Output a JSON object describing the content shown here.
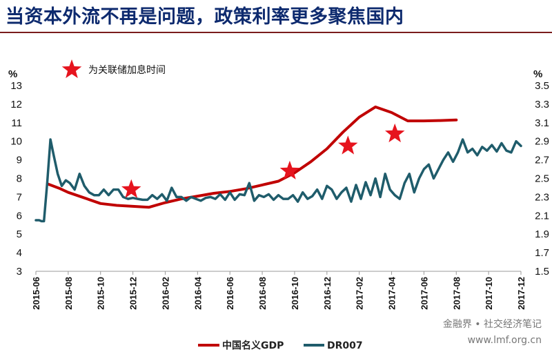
{
  "header": {
    "title": "当资本外流不再是问题，政策利率更多聚焦国内"
  },
  "watermark": {
    "text": "金融界 • 社交经济笔记",
    "site": "www.lmf.org.cn"
  },
  "chart_data": {
    "type": "line",
    "title": "当资本外流不再是问题，政策利率更多聚焦国内",
    "left_axis": {
      "unit": "%",
      "range": [
        3,
        13
      ],
      "ticks": [
        "3",
        "4",
        "5",
        "6",
        "7",
        "8",
        "9",
        "10",
        "11",
        "12",
        "13"
      ]
    },
    "right_axis": {
      "unit": "%",
      "range": [
        1.5,
        3.5
      ],
      "ticks": [
        "1.5",
        "1.7",
        "1.9",
        "2.1",
        "2.3",
        "2.5",
        "2.7",
        "2.9",
        "3.1",
        "3.3",
        "3.5"
      ]
    },
    "x_range": [
      0,
      30
    ],
    "categories": [
      "2015-06",
      "2015-08",
      "2015-10",
      "2015-12",
      "2016-02",
      "2016-04",
      "2016-06",
      "2016-08",
      "2016-10",
      "2016-12",
      "2017-02",
      "2017-04",
      "2017-06",
      "2017-08",
      "2017-10",
      "2017-12"
    ],
    "series": [
      {
        "name": "中国名义GDP",
        "axis": "left",
        "color": "#c00000",
        "x": [
          0.75,
          1.5,
          2,
          3,
          4,
          5,
          6,
          7,
          8,
          9,
          10,
          11,
          12,
          13,
          14,
          15,
          16,
          17,
          18,
          19,
          20,
          21,
          22,
          23,
          24,
          25,
          26
        ],
        "y": [
          7.7,
          7.45,
          7.25,
          6.95,
          6.65,
          6.55,
          6.5,
          6.45,
          6.7,
          6.9,
          7.05,
          7.2,
          7.3,
          7.45,
          7.65,
          7.85,
          8.3,
          8.9,
          9.6,
          10.5,
          11.3,
          11.85,
          11.55,
          11.1,
          11.1,
          11.12,
          11.15
        ]
      },
      {
        "name": "DR007",
        "axis": "right",
        "color": "#1f5c6b",
        "x": [
          0,
          0.2,
          0.35,
          0.5,
          0.7,
          0.9,
          1.1,
          1.35,
          1.6,
          1.85,
          2.1,
          2.4,
          2.7,
          3,
          3.3,
          3.6,
          3.9,
          4.2,
          4.5,
          4.8,
          5.1,
          5.4,
          5.7,
          6,
          6.3,
          6.6,
          6.9,
          7.2,
          7.5,
          7.8,
          8.1,
          8.4,
          8.7,
          9,
          9.3,
          9.6,
          9.9,
          10.2,
          10.5,
          10.8,
          11.1,
          11.4,
          11.7,
          12,
          12.3,
          12.6,
          12.9,
          13.2,
          13.5,
          13.8,
          14.1,
          14.4,
          14.7,
          15,
          15.3,
          15.6,
          15.9,
          16.2,
          16.5,
          16.8,
          17.1,
          17.4,
          17.7,
          18,
          18.3,
          18.6,
          18.9,
          19.2,
          19.5,
          19.8,
          20.1,
          20.4,
          20.7,
          21,
          21.3,
          21.6,
          21.9,
          22.2,
          22.5,
          22.8,
          23.1,
          23.4,
          23.7,
          24,
          24.3,
          24.6,
          24.9,
          25.2,
          25.5,
          25.8,
          26.1,
          26.4,
          26.7,
          27,
          27.3,
          27.6,
          27.9,
          28.2,
          28.5,
          28.8,
          29.1,
          29.4,
          29.7,
          30
        ],
        "y": [
          2.05,
          2.05,
          2.04,
          2.04,
          2.45,
          2.92,
          2.75,
          2.55,
          2.42,
          2.48,
          2.45,
          2.38,
          2.55,
          2.42,
          2.35,
          2.32,
          2.32,
          2.38,
          2.32,
          2.38,
          2.38,
          2.3,
          2.28,
          2.29,
          2.28,
          2.27,
          2.27,
          2.32,
          2.28,
          2.33,
          2.26,
          2.4,
          2.3,
          2.3,
          2.26,
          2.3,
          2.28,
          2.26,
          2.29,
          2.3,
          2.28,
          2.33,
          2.27,
          2.35,
          2.27,
          2.33,
          2.32,
          2.45,
          2.26,
          2.32,
          2.3,
          2.33,
          2.27,
          2.32,
          2.28,
          2.28,
          2.32,
          2.25,
          2.35,
          2.28,
          2.31,
          2.38,
          2.28,
          2.42,
          2.38,
          2.28,
          2.35,
          2.4,
          2.25,
          2.43,
          2.28,
          2.46,
          2.32,
          2.5,
          2.3,
          2.55,
          2.38,
          2.32,
          2.28,
          2.45,
          2.55,
          2.35,
          2.5,
          2.6,
          2.65,
          2.5,
          2.6,
          2.7,
          2.78,
          2.68,
          2.78,
          2.92,
          2.78,
          2.82,
          2.75,
          2.84,
          2.8,
          2.86,
          2.79,
          2.88,
          2.8,
          2.78,
          2.9,
          2.85
        ]
      }
    ],
    "annotation": {
      "label": "为关联储加息时间",
      "marker": "star",
      "color": "#e6141e"
    },
    "star_events": [
      {
        "x": 5.9,
        "y": 7.4
      },
      {
        "x": 15.7,
        "y": 8.4
      },
      {
        "x": 19.3,
        "y": 9.75
      },
      {
        "x": 22.2,
        "y": 10.4
      }
    ],
    "legend": {
      "position": "bottom-center",
      "items": [
        "中国名义GDP",
        "DR007"
      ]
    }
  }
}
